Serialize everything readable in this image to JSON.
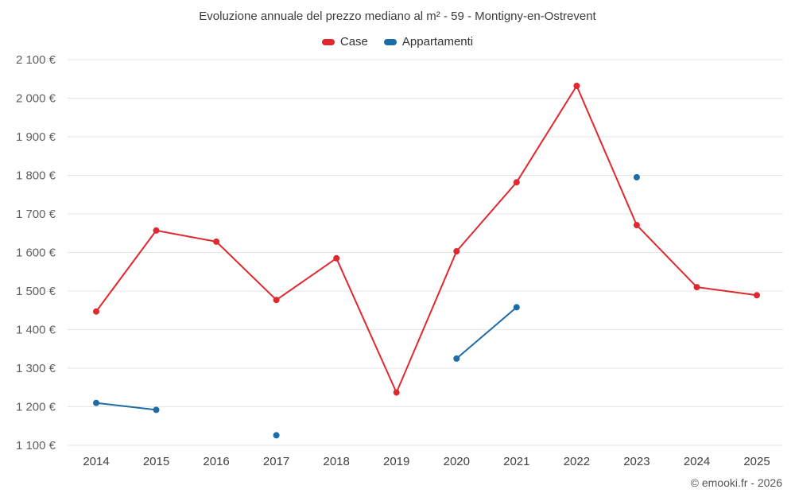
{
  "page": {
    "footer": "© emooki.fr - 2026"
  },
  "chart_data": {
    "type": "line",
    "title": "Evoluzione annuale del prezzo mediano al m² - 59 - Montigny-en-Ostrevent",
    "categories": [
      "2014",
      "2015",
      "2016",
      "2017",
      "2018",
      "2019",
      "2020",
      "2021",
      "2022",
      "2023",
      "2024",
      "2025"
    ],
    "series": [
      {
        "name": "Case",
        "color": "#e0282e",
        "values": [
          1447,
          1657,
          1628,
          1477,
          1585,
          1237,
          1603,
          1782,
          2032,
          1671,
          1510,
          1489
        ]
      },
      {
        "name": "Appartamenti",
        "color": "#1b6ca8",
        "values": [
          1210,
          1192,
          null,
          1126,
          null,
          null,
          1325,
          1458,
          null,
          1795,
          null,
          null
        ]
      }
    ],
    "ylabel": "",
    "xlabel": "",
    "ylim": [
      1100,
      2100
    ],
    "ytick_step": 100,
    "y_suffix": " €",
    "grid": true,
    "legend_position": "top"
  }
}
